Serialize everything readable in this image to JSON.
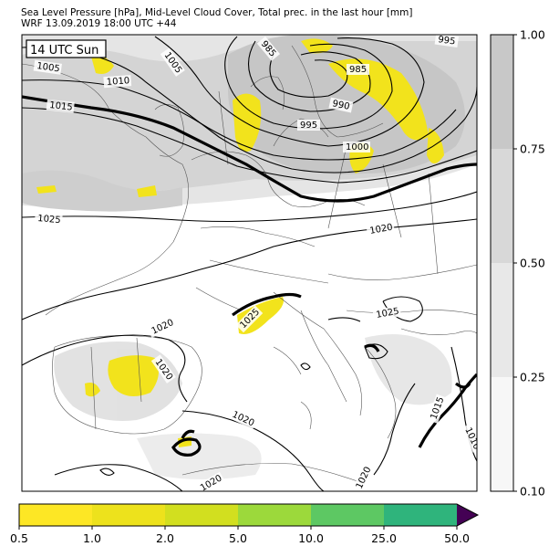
{
  "header": {
    "title_line1": "Sea Level Pressure [hPa], Mid-Level Cloud Cover, Total prec. in the last hour [mm]",
    "title_line2": "WRF 13.09.2019 18:00 UTC +44"
  },
  "map": {
    "time_badge": "14 UTC Sun",
    "isobar_labels": [
      "985",
      "1005",
      "1010",
      "1015",
      "1005",
      "990",
      "995",
      "1000",
      "985",
      "995",
      "1025",
      "1020",
      "1020",
      "1025",
      "1020",
      "1020",
      "1025",
      "1020",
      "1020",
      "1015",
      "1010",
      "1020"
    ],
    "colors": {
      "precip_yellow": "#f2e31c",
      "cloud_grey": "#c8c8c8"
    }
  },
  "cloud_colorbar": {
    "levels": [
      0.1,
      0.25,
      0.5,
      0.75,
      1.0
    ],
    "tick_labels": [
      "1.00",
      "0.75",
      "0.50",
      "0.25",
      "0.10"
    ],
    "colors": [
      "#f7f7f7",
      "#e8e8e8",
      "#d8d8d8",
      "#c8c8c8"
    ]
  },
  "precip_colorbar": {
    "levels": [
      0.5,
      1.0,
      2.0,
      5.0,
      10.0,
      25.0,
      50.0
    ],
    "tick_labels": [
      "0.5",
      "1.0",
      "2.0",
      "5.0",
      "10.0",
      "25.0",
      "50.0"
    ],
    "colors": [
      "#fde725",
      "#ede21c",
      "#d2df1f",
      "#9cd93b",
      "#5dc863",
      "#2fb47c",
      "#3b528b"
    ],
    "extend_color": "#440154"
  }
}
